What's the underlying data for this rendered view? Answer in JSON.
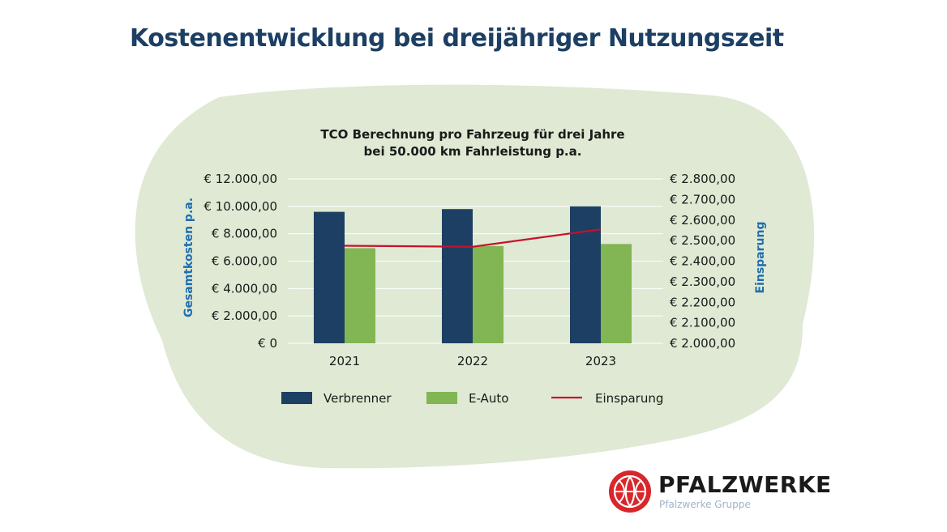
{
  "page": {
    "title": "Kostenentwicklung bei dreijähriger Nutzungszeit"
  },
  "colors": {
    "blob": "#dfe9d3",
    "verbrenner": "#1d3f63",
    "eauto": "#82b553",
    "einsparung": "#c8102e",
    "axis_title": "#1f6eb0",
    "text": "#1a1a1a",
    "title": "#1d3f63"
  },
  "chart_data": {
    "type": "bar",
    "title_lines": [
      "TCO Berechnung pro Fahrzeug für drei Jahre",
      "bei 50.000 km Fahrleistung p.a."
    ],
    "categories": [
      "2021",
      "2022",
      "2023"
    ],
    "series": [
      {
        "name": "Verbrenner",
        "kind": "bar",
        "axis": "left",
        "color": "#1d3f63",
        "values": [
          9600,
          9800,
          10000
        ]
      },
      {
        "name": "E-Auto",
        "kind": "bar",
        "axis": "left",
        "color": "#82b553",
        "values": [
          6950,
          7100,
          7250
        ]
      },
      {
        "name": "Einsparung",
        "kind": "line",
        "axis": "right",
        "color": "#c8102e",
        "values": [
          2475,
          2470,
          2555
        ]
      }
    ],
    "y_left": {
      "label": "Gesamtkosten p.a.",
      "range": [
        0,
        12000
      ],
      "ticks": [
        0,
        2000,
        4000,
        6000,
        8000,
        10000,
        12000
      ],
      "tick_labels": [
        "€ 0",
        "€ 2.000,00",
        "€ 4.000,00",
        "€ 6.000,00",
        "€ 8.000,00",
        "€ 10.000,00",
        "€ 12.000,00"
      ]
    },
    "y_right": {
      "label": "Einsparung",
      "range": [
        2000,
        2800
      ],
      "ticks": [
        2000,
        2100,
        2200,
        2300,
        2400,
        2500,
        2600,
        2700,
        2800
      ],
      "tick_labels": [
        "€ 2.000,00",
        "€ 2.100,00",
        "€ 2.200,00",
        "€ 2.300,00",
        "€ 2.400,00",
        "€ 2.500,00",
        "€ 2.600,00",
        "€ 2.700,00",
        "€ 2.800,00"
      ]
    },
    "grid": true,
    "legend_position": "bottom"
  },
  "brand": {
    "name": "PFALZWERKE",
    "subtitle": "Pfalzwerke Gruppe"
  }
}
